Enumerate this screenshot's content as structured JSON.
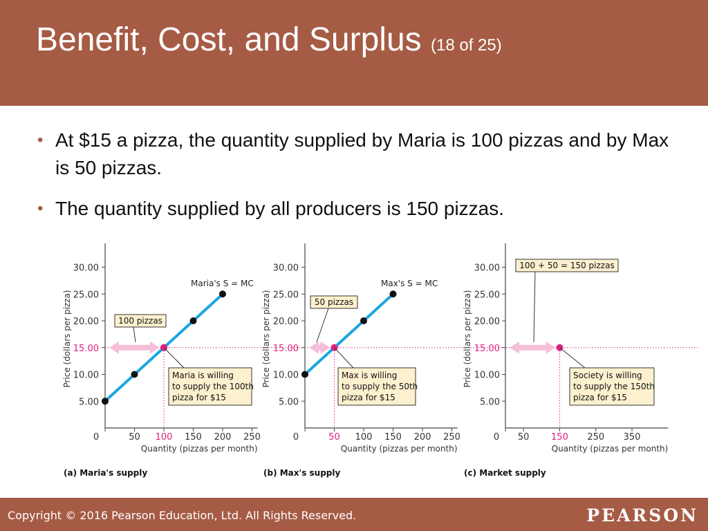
{
  "slide": {
    "title": "Benefit, Cost, and Surplus",
    "subtitle": "(18 of 25)",
    "bullets": [
      "At $15 a pizza, the quantity supplied by Maria is 100 pizzas and by Max is 50 pizzas.",
      "The quantity supplied by all producers is 150 pizzas."
    ],
    "copyright": "Copyright © 2016 Pearson Education, Ltd. All Rights Reserved.",
    "logo": "PEARSON"
  },
  "colors": {
    "header": "#a65b45",
    "supply_line": "#1ba6e0",
    "highlight": "#e0227e",
    "arrow": "#f6bfd9",
    "callout_fill": "#fcf0cf"
  },
  "chart_data": [
    {
      "type": "line",
      "caption": "(a) Maria's supply",
      "xlabel": "Quantity (pizzas per month)",
      "ylabel": "Price (dollars per pizza)",
      "xlim": [
        0,
        250
      ],
      "ylim": [
        0,
        30
      ],
      "x_ticks": [
        0,
        50,
        100,
        150,
        200,
        250
      ],
      "y_ticks": [
        5,
        10,
        15,
        20,
        25,
        30
      ],
      "x_tick_labels": [
        "0",
        "50",
        "100",
        "150",
        "200",
        "250"
      ],
      "y_tick_labels": [
        "5.00",
        "10.00",
        "15.00",
        "20.00",
        "25.00",
        "30.00"
      ],
      "series": [
        {
          "name": "Maria's S = MC",
          "x": [
            0,
            50,
            100,
            150,
            200
          ],
          "y": [
            5,
            10,
            15,
            20,
            25
          ]
        }
      ],
      "highlight": {
        "x": 100,
        "y": 15,
        "x_label": "100",
        "y_label": "15.00"
      },
      "quantity_callout": "100 pizzas",
      "point_callout": [
        "Maria is willing",
        "to supply the 100th",
        "pizza for $15"
      ]
    },
    {
      "type": "line",
      "caption": "(b) Max's supply",
      "xlabel": "Quantity (pizzas per month)",
      "ylabel": "Price (dollars per pizza)",
      "xlim": [
        0,
        250
      ],
      "ylim": [
        0,
        30
      ],
      "x_ticks": [
        0,
        50,
        100,
        150,
        200,
        250
      ],
      "y_ticks": [
        5,
        10,
        15,
        20,
        25,
        30
      ],
      "x_tick_labels": [
        "0",
        "50",
        "100",
        "150",
        "200",
        "250"
      ],
      "y_tick_labels": [
        "5.00",
        "10.00",
        "15.00",
        "20.00",
        "25.00",
        "30.00"
      ],
      "series": [
        {
          "name": "Max's S = MC",
          "x": [
            0,
            100,
            150
          ],
          "y": [
            10,
            20,
            25
          ]
        }
      ],
      "highlight": {
        "x": 50,
        "y": 15,
        "x_label": "50",
        "y_label": "15.00"
      },
      "quantity_callout": "50 pizzas",
      "point_callout": [
        "Max is willing",
        "to supply the 50th",
        "pizza for $15"
      ]
    },
    {
      "type": "line",
      "caption": "(c) Market supply",
      "xlabel": "Quantity (pizzas per month)",
      "ylabel": "Price (dollars per pizza)",
      "xlim": [
        0,
        450
      ],
      "ylim": [
        0,
        30
      ],
      "x_ticks": [
        0,
        50,
        150,
        250,
        350
      ],
      "y_ticks": [
        5,
        10,
        15,
        20,
        25,
        30
      ],
      "x_tick_labels": [
        "0",
        "50",
        "150",
        "250",
        "350"
      ],
      "y_tick_labels": [
        "5.00",
        "10.00",
        "15.00",
        "20.00",
        "25.00",
        "30.00"
      ],
      "series": [],
      "highlight": {
        "x": 150,
        "y": 15,
        "x_label": "150",
        "y_label": "15.00"
      },
      "quantity_callout": "100 + 50 = 150 pizzas",
      "point_callout": [
        "Society is willing",
        "to supply the 150th",
        "pizza for $15"
      ]
    }
  ]
}
